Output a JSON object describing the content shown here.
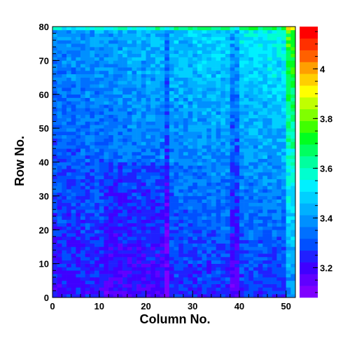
{
  "chart_data": {
    "type": "heatmap",
    "title": "",
    "xlabel": "Column No.",
    "ylabel": "Row No.",
    "xlim": [
      0,
      52
    ],
    "ylim": [
      0,
      80
    ],
    "x_ticks": [
      "0",
      "10",
      "20",
      "30",
      "40",
      "50"
    ],
    "y_ticks": [
      "0",
      "10",
      "20",
      "30",
      "40",
      "50",
      "60",
      "70",
      "80"
    ],
    "n_columns": 52,
    "n_rows": 80,
    "z_range": [
      3.08,
      4.17
    ],
    "z_ticks": [
      "3.2",
      "3.4",
      "3.6",
      "3.8",
      "4"
    ],
    "palette": [
      "#7f00ff",
      "#6000ff",
      "#3f00ff",
      "#2020ff",
      "#0050ff",
      "#0070ff",
      "#0090ff",
      "#00b0ff",
      "#00d0ff",
      "#00f0ff",
      "#00ffcf",
      "#00ff9f",
      "#00ff60",
      "#00ff20",
      "#40ff00",
      "#80ff00",
      "#c0ff00",
      "#ffff00",
      "#ffcf00",
      "#ff9f00",
      "#ff6000",
      "#ff3000",
      "#ff0000"
    ],
    "cell_values_description": "Values mostly 3.2-3.4 (blue), lower near bottom-left and in darker vertical stripes near columns 24, 38-39, higher (3.5-3.8, cyan/green) toward top-right and the right edge columns 50-51.",
    "row_profile_bottom_to_top": [
      3.22,
      3.24,
      3.26,
      3.28,
      3.3,
      3.32,
      3.34,
      3.36,
      3.38
    ],
    "column_profile_low_stripes": [
      24,
      38,
      39
    ],
    "right_edge_columns_high": [
      50,
      51
    ]
  }
}
